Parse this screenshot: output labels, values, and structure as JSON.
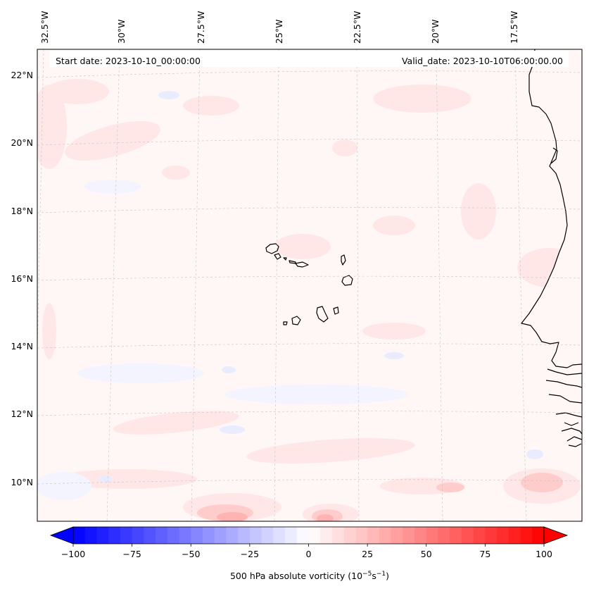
{
  "header": {
    "start_date": "Start date: 2023-10-10_00:00:00",
    "valid_date": "Valid_date: 2023-10-10T06:00:00.00"
  },
  "map": {
    "longitude_labels": [
      "32.5°W",
      "30°W",
      "27.5°W",
      "25°W",
      "22.5°W",
      "20°W",
      "17.5°W"
    ],
    "latitude_labels": [
      "22°N",
      "20°N",
      "18°N",
      "16°N",
      "14°N",
      "12°N",
      "10°N"
    ],
    "gridlines": "dashed"
  },
  "colorbar": {
    "label": "500 hPa absolute vorticity (10",
    "label_exp1": "−5",
    "label_mid": "s",
    "label_exp2": "−1",
    "label_end": ")",
    "ticks": [
      "−100",
      "−75",
      "−50",
      "−25",
      "0",
      "25",
      "50",
      "75",
      "100"
    ],
    "range": [
      -100,
      100
    ],
    "colors": {
      "min": "#0000ff",
      "mid": "#ffffff",
      "max": "#ff0000"
    }
  }
}
